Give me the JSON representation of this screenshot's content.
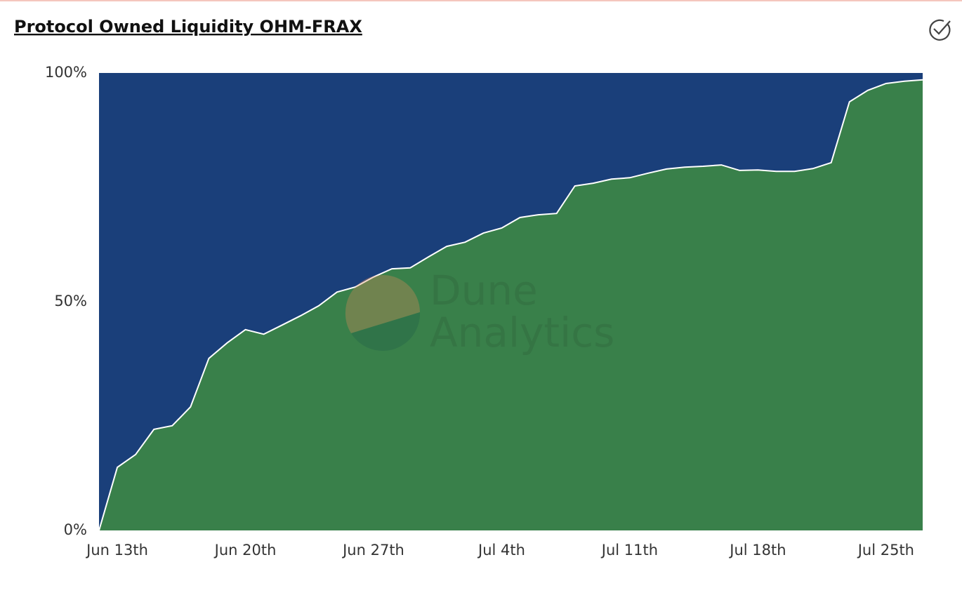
{
  "chart_data": {
    "type": "stacked_area",
    "title": "Protocol Owned Liquidity OHM-FRAX",
    "watermark": [
      "Dune",
      "Analytics"
    ],
    "categories": [
      null,
      "Jun 13th",
      null,
      null,
      null,
      null,
      null,
      null,
      "Jun 20th",
      null,
      null,
      null,
      null,
      null,
      null,
      "Jun 27th",
      null,
      null,
      null,
      null,
      null,
      null,
      "Jul 4th",
      null,
      null,
      null,
      null,
      null,
      null,
      "Jul 11th",
      null,
      null,
      null,
      null,
      null,
      null,
      "Jul 18th",
      null,
      null,
      null,
      null,
      null,
      null,
      "Jul 25th",
      null,
      null
    ],
    "series": [
      {
        "color": "#39804a",
        "values": [
          0,
          13.8,
          16.6,
          22.1,
          22.9,
          27.0,
          37.6,
          41.0,
          43.9,
          42.9,
          44.9,
          46.9,
          49.1,
          52.1,
          53.2,
          55.4,
          57.2,
          57.4,
          59.8,
          62.1,
          63.0,
          65.0,
          66.1,
          68.4,
          69.0,
          69.3,
          75.3,
          75.9,
          76.8,
          77.1,
          78.1,
          79.0,
          79.4,
          79.6,
          79.9,
          78.7,
          78.8,
          78.5,
          78.5,
          79.1,
          80.4,
          93.7,
          96.2,
          97.7,
          98.2,
          98.5
        ]
      },
      {
        "color": "#1a3f7a",
        "values": [
          100,
          86.2,
          83.4,
          77.9,
          77.1,
          73.0,
          62.4,
          59.0,
          56.1,
          57.1,
          55.1,
          53.1,
          50.9,
          47.9,
          46.8,
          44.6,
          42.8,
          42.6,
          40.2,
          37.9,
          37.0,
          35.0,
          33.9,
          31.6,
          31.0,
          30.7,
          24.7,
          24.1,
          23.2,
          22.9,
          21.9,
          21.0,
          20.6,
          20.4,
          20.1,
          21.3,
          21.2,
          21.5,
          21.5,
          20.9,
          19.6,
          6.3,
          3.8,
          2.3,
          1.8,
          1.5
        ]
      }
    ],
    "ylim": [
      0,
      100
    ],
    "yticks": [
      {
        "value": 0,
        "label": "0%"
      },
      {
        "value": 50,
        "label": "50%"
      },
      {
        "value": 100,
        "label": "100%"
      }
    ]
  }
}
